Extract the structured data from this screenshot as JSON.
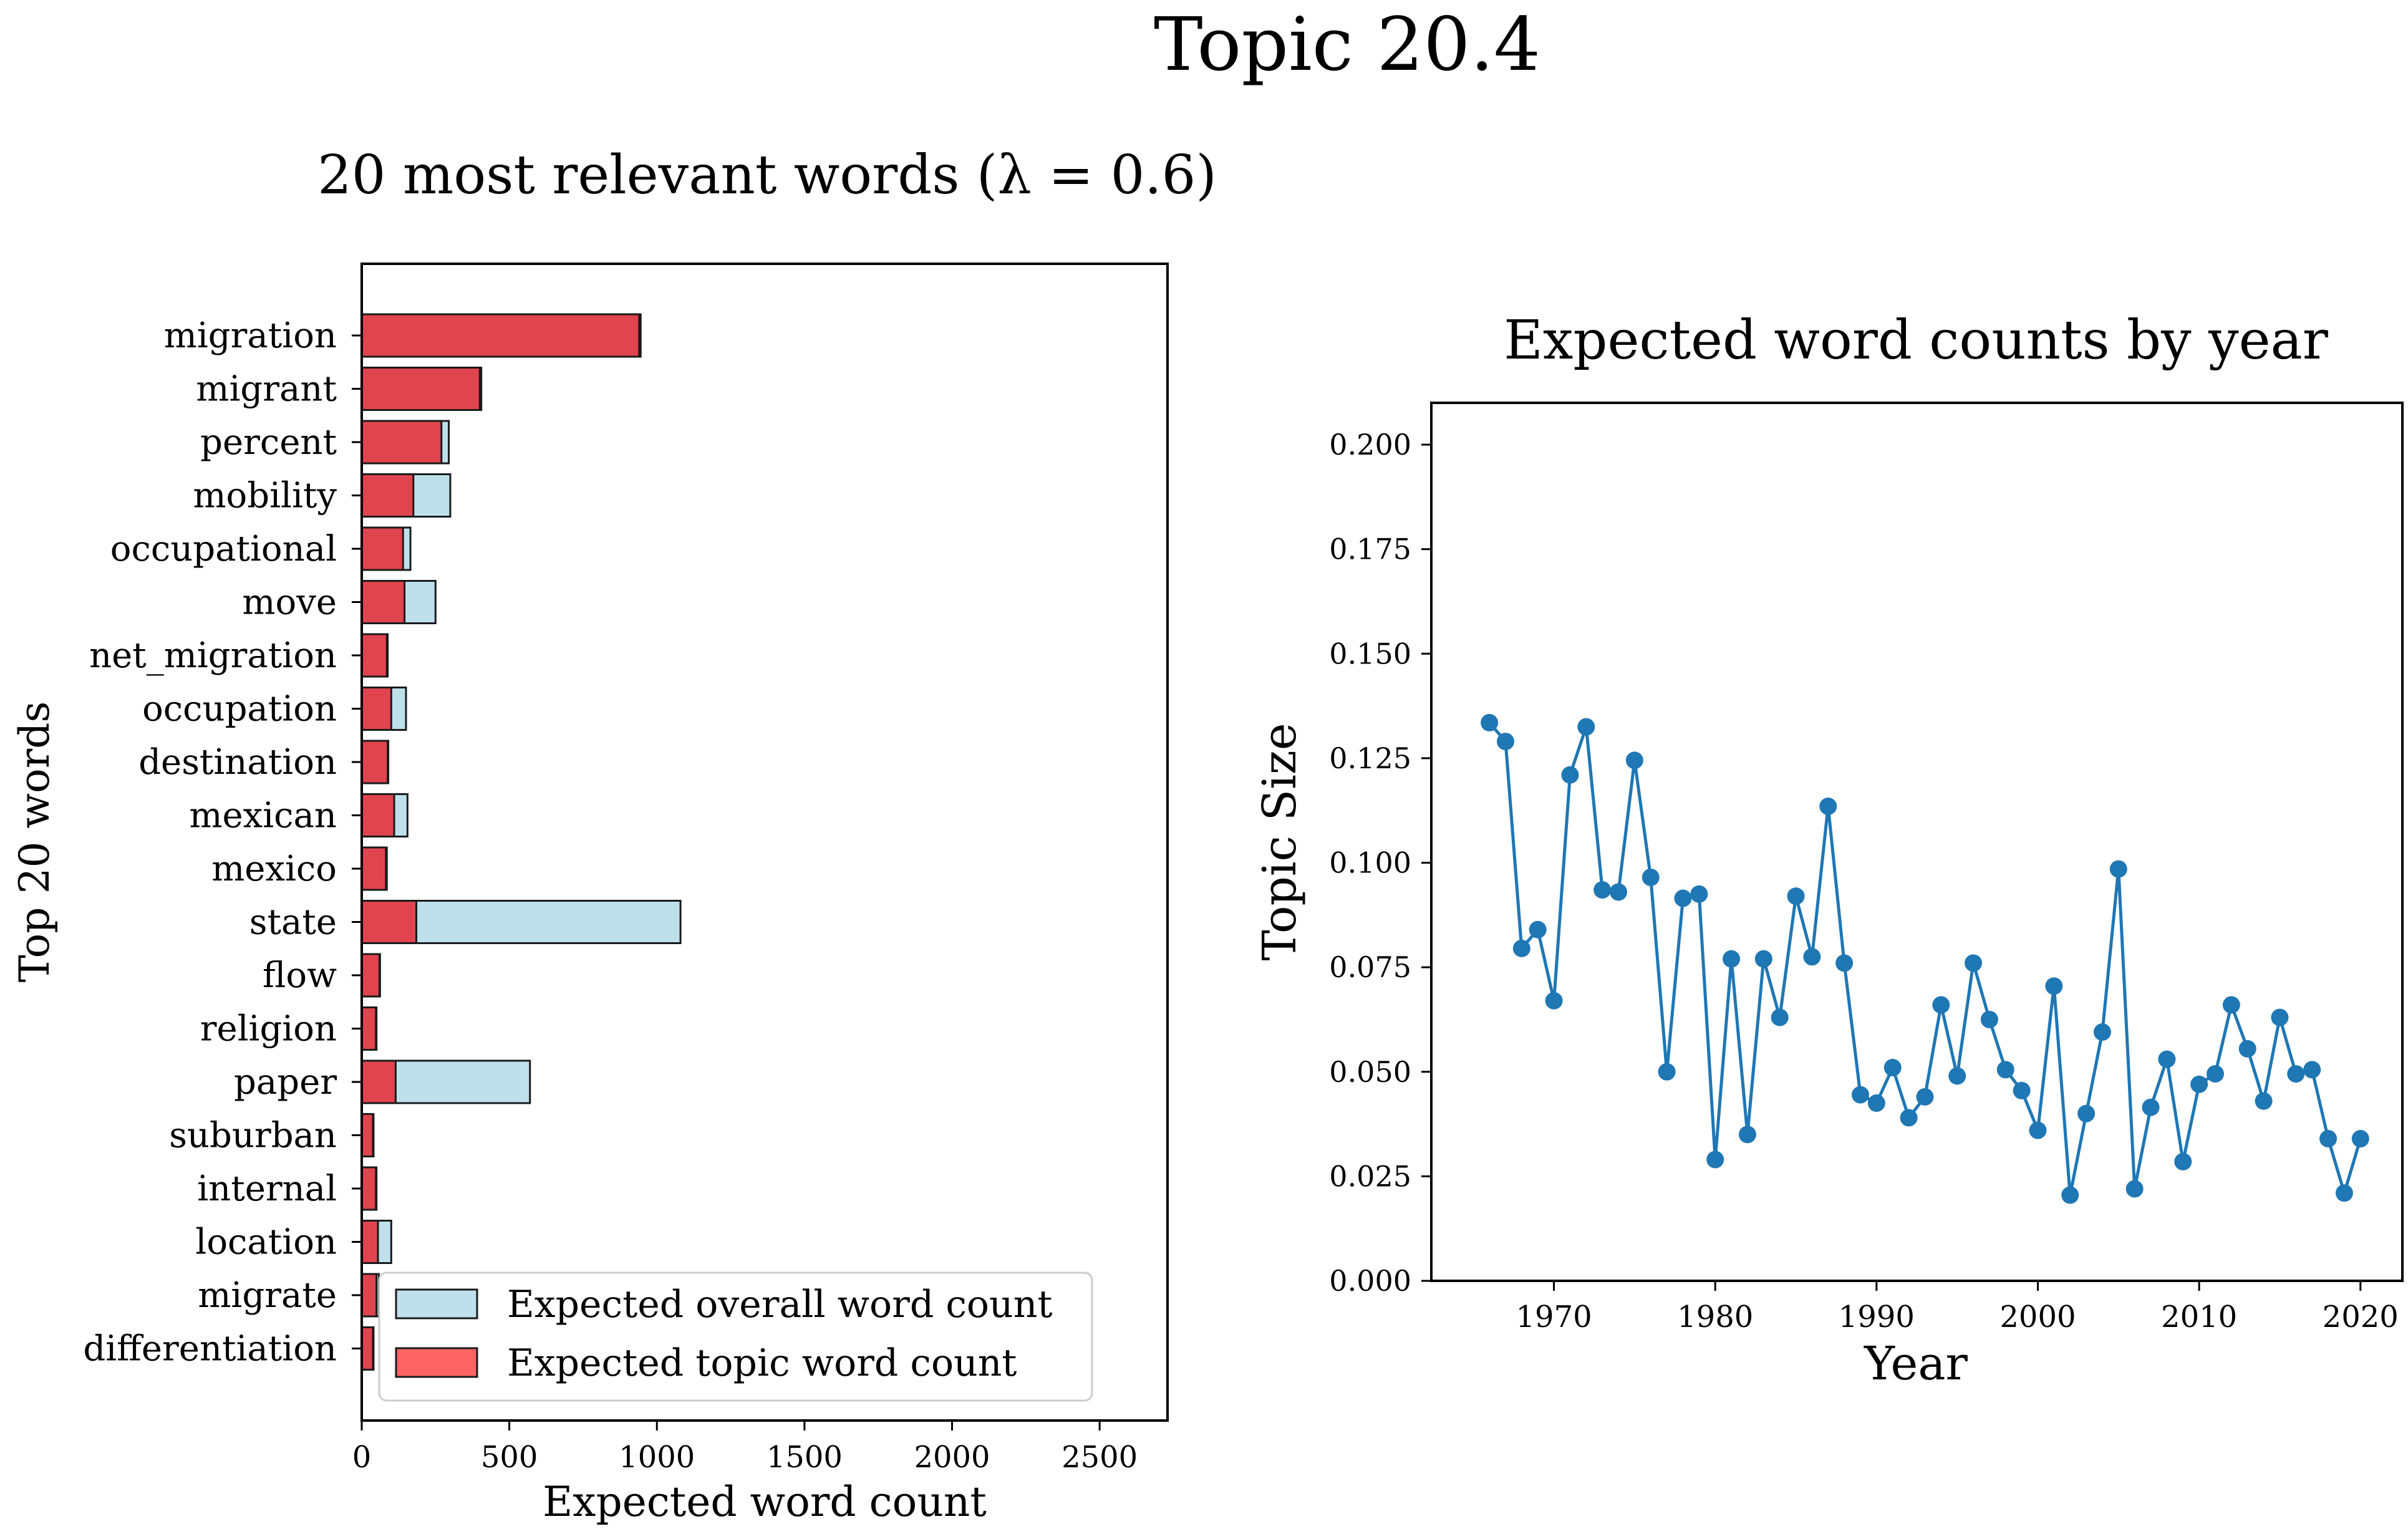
{
  "figure": {
    "suptitle": "Topic 20.4"
  },
  "chart_data": [
    {
      "type": "bar",
      "orientation": "horizontal",
      "title": "20 most relevant words (λ = 0.6)",
      "xlabel": "Expected word count",
      "ylabel": "Top 20 words",
      "xlim": [
        0,
        2730
      ],
      "xticks": [
        0,
        500,
        1000,
        1500,
        2000,
        2500
      ],
      "grid": false,
      "legend_position": "lower-right",
      "categories": [
        "migration",
        "migrant",
        "percent",
        "mobility",
        "occupational",
        "move",
        "net_migration",
        "occupation",
        "destination",
        "mexican",
        "mexico",
        "state",
        "flow",
        "religion",
        "paper",
        "suburban",
        "internal",
        "location",
        "migrate",
        "differentiation"
      ],
      "series": [
        {
          "name": "Expected overall word count",
          "color": "#add8e6",
          "values": [
            945,
            405,
            295,
            300,
            165,
            250,
            88,
            150,
            90,
            155,
            85,
            1080,
            62,
            50,
            570,
            40,
            50,
            100,
            58,
            40
          ]
        },
        {
          "name": "Expected topic word count",
          "color": "#e0444e",
          "values": [
            940,
            400,
            270,
            175,
            140,
            145,
            85,
            100,
            88,
            110,
            82,
            185,
            60,
            48,
            115,
            38,
            48,
            55,
            50,
            38
          ]
        }
      ]
    },
    {
      "type": "line",
      "title": "Expected word counts by year",
      "xlabel": "Year",
      "ylabel": "Topic Size",
      "xlim": [
        1962.4,
        2022.6
      ],
      "ylim": [
        0.0,
        0.21
      ],
      "xticks": [
        1970,
        1980,
        1990,
        2000,
        2010,
        2020
      ],
      "yticks": [
        0.0,
        0.025,
        0.05,
        0.075,
        0.1,
        0.125,
        0.15,
        0.175,
        0.2
      ],
      "ytick_labels": [
        "0.000",
        "0.025",
        "0.050",
        "0.075",
        "0.100",
        "0.125",
        "0.150",
        "0.175",
        "0.200"
      ],
      "grid": false,
      "color": "#1f77b4",
      "x": [
        1966,
        1967,
        1968,
        1969,
        1970,
        1971,
        1972,
        1973,
        1974,
        1975,
        1976,
        1977,
        1978,
        1979,
        1980,
        1981,
        1982,
        1983,
        1984,
        1985,
        1986,
        1987,
        1988,
        1989,
        1990,
        1991,
        1992,
        1993,
        1994,
        1995,
        1996,
        1997,
        1998,
        1999,
        2000,
        2001,
        2002,
        2003,
        2004,
        2005,
        2006,
        2007,
        2008,
        2009,
        2010,
        2011,
        2012,
        2013,
        2014,
        2015,
        2016,
        2017,
        2018,
        2019,
        2020
      ],
      "y": [
        0.1335,
        0.129,
        0.0795,
        0.084,
        0.067,
        0.121,
        0.1325,
        0.0935,
        0.093,
        0.1245,
        0.0965,
        0.05,
        0.0915,
        0.0925,
        0.029,
        0.077,
        0.035,
        0.077,
        0.063,
        0.092,
        0.0775,
        0.1135,
        0.076,
        0.0445,
        0.0425,
        0.051,
        0.039,
        0.044,
        0.066,
        0.049,
        0.076,
        0.0625,
        0.0505,
        0.0455,
        0.036,
        0.0705,
        0.0205,
        0.04,
        0.0595,
        0.0985,
        0.022,
        0.0415,
        0.053,
        0.0285,
        0.047,
        0.0495,
        0.066,
        0.0555,
        0.043,
        0.063,
        0.0495,
        0.0505,
        0.034,
        0.021,
        0.034
      ]
    }
  ]
}
